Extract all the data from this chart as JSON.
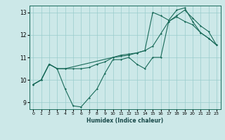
{
  "xlabel": "Humidex (Indice chaleur)",
  "ylabel": "",
  "xlim": [
    -0.5,
    23.5
  ],
  "ylim": [
    8.7,
    13.3
  ],
  "yticks": [
    9,
    10,
    11,
    12,
    13
  ],
  "xticks": [
    0,
    1,
    2,
    3,
    4,
    5,
    6,
    7,
    8,
    9,
    10,
    11,
    12,
    13,
    14,
    15,
    16,
    17,
    18,
    19,
    20,
    21,
    22,
    23
  ],
  "bg_color": "#cce8e8",
  "grid_color": "#99cccc",
  "line_color": "#1a6b5a",
  "line1_x": [
    0,
    1,
    2,
    3,
    4,
    5,
    6,
    7,
    8,
    9,
    10,
    11,
    12,
    13,
    14,
    15,
    16,
    17,
    18,
    19,
    20,
    21,
    22,
    23
  ],
  "line1_y": [
    9.8,
    10.0,
    10.7,
    10.5,
    9.6,
    8.85,
    8.8,
    9.2,
    9.6,
    10.3,
    10.9,
    10.9,
    11.0,
    10.7,
    10.5,
    11.0,
    11.0,
    12.6,
    12.8,
    12.6,
    12.45,
    12.1,
    11.85,
    11.55
  ],
  "line2_x": [
    0,
    1,
    2,
    3,
    4,
    5,
    6,
    7,
    8,
    9,
    10,
    11,
    12,
    13,
    14,
    15,
    16,
    17,
    18,
    19,
    20,
    21,
    22,
    23
  ],
  "line2_y": [
    9.8,
    10.0,
    10.7,
    10.5,
    10.5,
    10.5,
    10.5,
    10.55,
    10.7,
    10.8,
    11.0,
    11.1,
    11.15,
    11.2,
    11.3,
    11.5,
    12.05,
    12.6,
    12.85,
    13.1,
    12.75,
    12.4,
    12.15,
    11.55
  ],
  "line3_x": [
    0,
    1,
    2,
    3,
    4,
    10,
    11,
    12,
    13,
    14,
    15,
    16,
    17,
    18,
    19,
    20,
    21,
    22,
    23
  ],
  "line3_y": [
    9.8,
    10.0,
    10.7,
    10.5,
    10.5,
    11.0,
    11.05,
    11.1,
    11.2,
    11.3,
    13.0,
    12.85,
    12.65,
    13.1,
    13.2,
    12.6,
    12.1,
    11.85,
    11.55
  ]
}
